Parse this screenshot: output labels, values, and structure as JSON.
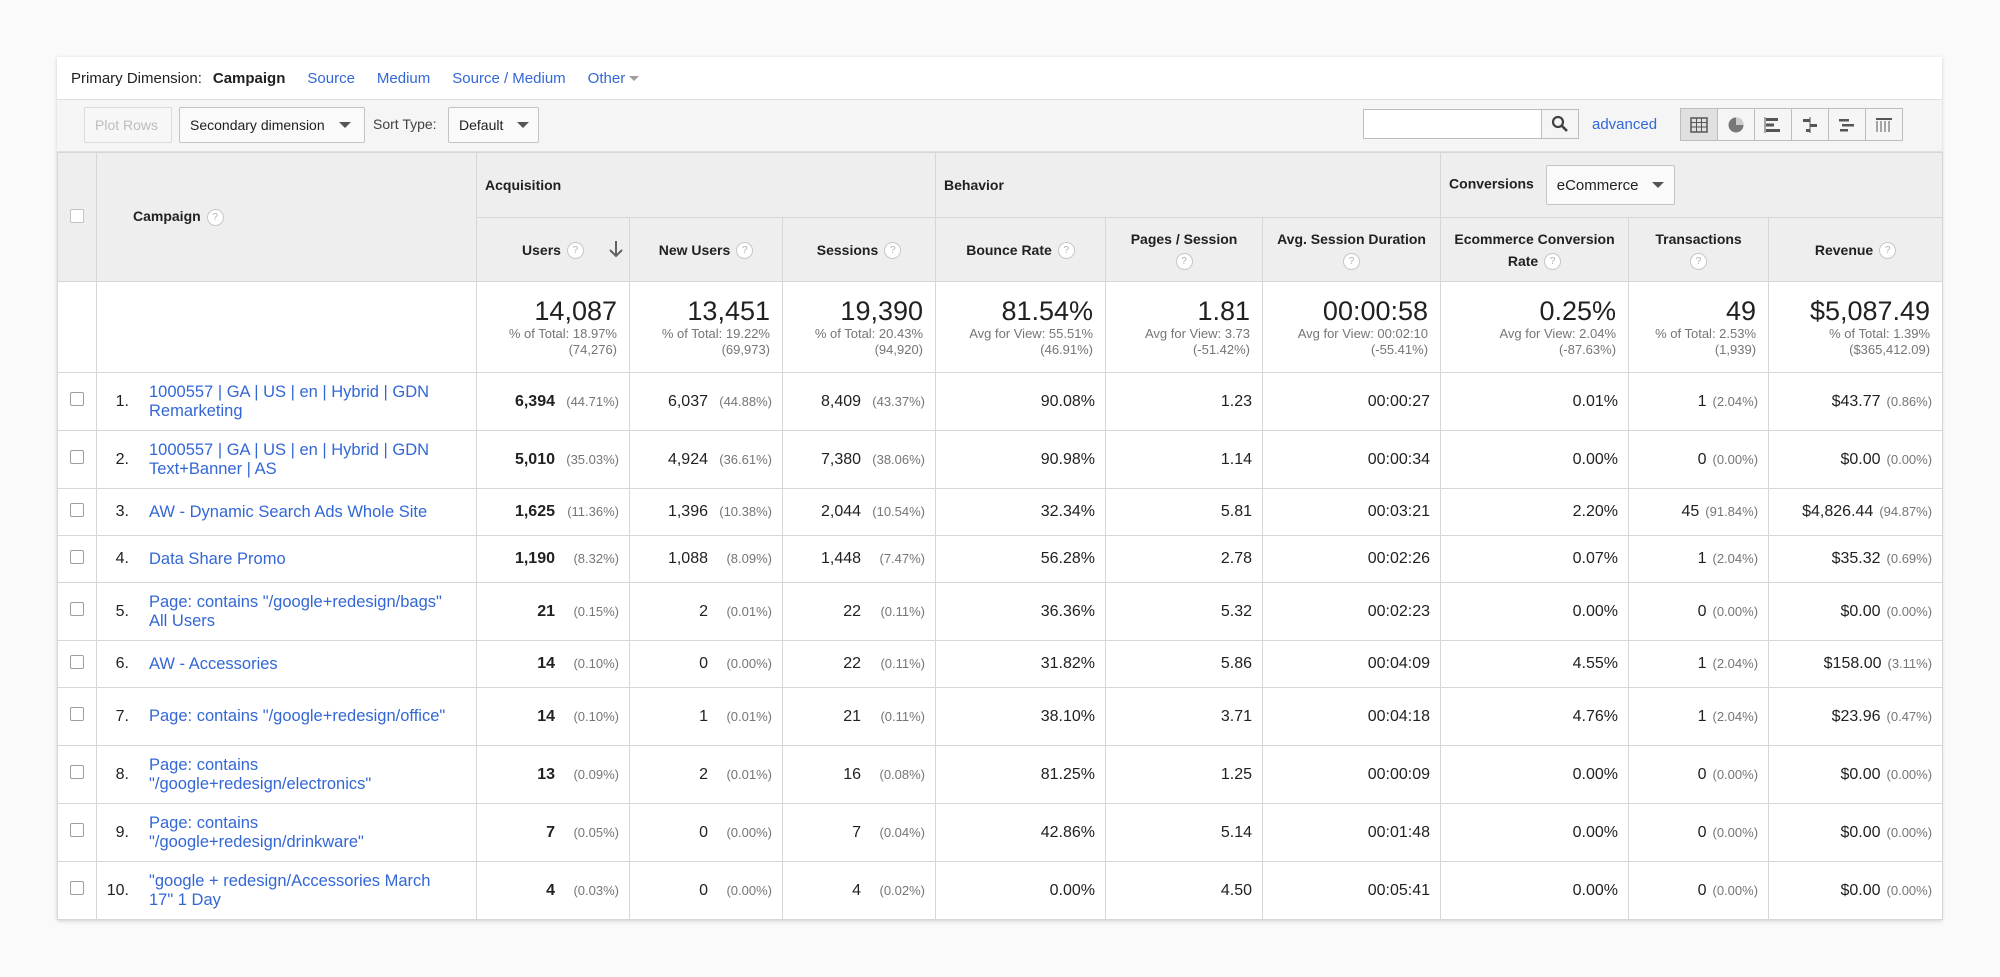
{
  "primary_dimension": {
    "label": "Primary Dimension:",
    "active": "Campaign",
    "links": [
      "Source",
      "Medium",
      "Source / Medium",
      "Other"
    ]
  },
  "toolbar": {
    "plot_rows": "Plot Rows",
    "secondary_dimension": "Secondary dimension",
    "sort_type_label": "Sort Type:",
    "sort_type_value": "Default",
    "search_value": "",
    "advanced": "advanced",
    "view_icons": [
      "table-view-icon",
      "pie-view-icon",
      "bar-view-icon",
      "comparison-view-icon",
      "term-cloud-icon",
      "pivot-view-icon"
    ]
  },
  "table": {
    "campaign_header": "Campaign",
    "groups": {
      "acquisition": "Acquisition",
      "behavior": "Behavior",
      "conversions": "Conversions",
      "conversions_select": "eCommerce"
    },
    "columns": [
      "Users",
      "New Users",
      "Sessions",
      "Bounce Rate",
      "Pages / Session",
      "Avg. Session Duration",
      "Ecommerce Conversion Rate",
      "Transactions",
      "Revenue"
    ],
    "totals": [
      {
        "value": "14,087",
        "sub1": "% of Total: 18.97%",
        "sub2": "(74,276)"
      },
      {
        "value": "13,451",
        "sub1": "% of Total: 19.22%",
        "sub2": "(69,973)"
      },
      {
        "value": "19,390",
        "sub1": "% of Total: 20.43%",
        "sub2": "(94,920)"
      },
      {
        "value": "81.54%",
        "sub1": "Avg for View: 55.51%",
        "sub2": "(46.91%)"
      },
      {
        "value": "1.81",
        "sub1": "Avg for View: 3.73",
        "sub2": "(-51.42%)"
      },
      {
        "value": "00:00:58",
        "sub1": "Avg for View: 00:02:10",
        "sub2": "(-55.41%)"
      },
      {
        "value": "0.25%",
        "sub1": "Avg for View: 2.04%",
        "sub2": "(-87.63%)"
      },
      {
        "value": "49",
        "sub1": "% of Total: 2.53%",
        "sub2": "(1,939)"
      },
      {
        "value": "$5,087.49",
        "sub1": "% of Total: 1.39%",
        "sub2": "($365,412.09)"
      }
    ],
    "rows": [
      {
        "num": "1.",
        "campaign": "1000557 | GA | US | en | Hybrid | GDN Remarketing",
        "users": "6,394",
        "users_pct": "(44.71%)",
        "new_users": "6,037",
        "new_users_pct": "(44.88%)",
        "sessions": "8,409",
        "sessions_pct": "(43.37%)",
        "bounce": "90.08%",
        "pages": "1.23",
        "duration": "00:00:27",
        "conv_rate": "0.01%",
        "transactions": "1",
        "transactions_pct": "(2.04%)",
        "revenue": "$43.77",
        "revenue_pct": "(0.86%)"
      },
      {
        "num": "2.",
        "campaign": "1000557 | GA | US | en | Hybrid | GDN Text+Banner | AS",
        "users": "5,010",
        "users_pct": "(35.03%)",
        "new_users": "4,924",
        "new_users_pct": "(36.61%)",
        "sessions": "7,380",
        "sessions_pct": "(38.06%)",
        "bounce": "90.98%",
        "pages": "1.14",
        "duration": "00:00:34",
        "conv_rate": "0.00%",
        "transactions": "0",
        "transactions_pct": "(0.00%)",
        "revenue": "$0.00",
        "revenue_pct": "(0.00%)"
      },
      {
        "num": "3.",
        "campaign": "AW - Dynamic Search Ads Whole Site",
        "users": "1,625",
        "users_pct": "(11.36%)",
        "new_users": "1,396",
        "new_users_pct": "(10.38%)",
        "sessions": "2,044",
        "sessions_pct": "(10.54%)",
        "bounce": "32.34%",
        "pages": "5.81",
        "duration": "00:03:21",
        "conv_rate": "2.20%",
        "transactions": "45",
        "transactions_pct": "(91.84%)",
        "revenue": "$4,826.44",
        "revenue_pct": "(94.87%)"
      },
      {
        "num": "4.",
        "campaign": "Data Share Promo",
        "users": "1,190",
        "users_pct": "(8.32%)",
        "new_users": "1,088",
        "new_users_pct": "(8.09%)",
        "sessions": "1,448",
        "sessions_pct": "(7.47%)",
        "bounce": "56.28%",
        "pages": "2.78",
        "duration": "00:02:26",
        "conv_rate": "0.07%",
        "transactions": "1",
        "transactions_pct": "(2.04%)",
        "revenue": "$35.32",
        "revenue_pct": "(0.69%)"
      },
      {
        "num": "5.",
        "campaign": "Page: contains \"/google+redesign/bags\" All Users",
        "users": "21",
        "users_pct": "(0.15%)",
        "new_users": "2",
        "new_users_pct": "(0.01%)",
        "sessions": "22",
        "sessions_pct": "(0.11%)",
        "bounce": "36.36%",
        "pages": "5.32",
        "duration": "00:02:23",
        "conv_rate": "0.00%",
        "transactions": "0",
        "transactions_pct": "(0.00%)",
        "revenue": "$0.00",
        "revenue_pct": "(0.00%)"
      },
      {
        "num": "6.",
        "campaign": "AW - Accessories",
        "users": "14",
        "users_pct": "(0.10%)",
        "new_users": "0",
        "new_users_pct": "(0.00%)",
        "sessions": "22",
        "sessions_pct": "(0.11%)",
        "bounce": "31.82%",
        "pages": "5.86",
        "duration": "00:04:09",
        "conv_rate": "4.55%",
        "transactions": "1",
        "transactions_pct": "(2.04%)",
        "revenue": "$158.00",
        "revenue_pct": "(3.11%)"
      },
      {
        "num": "7.",
        "campaign": "Page: contains \"/google+redesign/office\"",
        "users": "14",
        "users_pct": "(0.10%)",
        "new_users": "1",
        "new_users_pct": "(0.01%)",
        "sessions": "21",
        "sessions_pct": "(0.11%)",
        "bounce": "38.10%",
        "pages": "3.71",
        "duration": "00:04:18",
        "conv_rate": "4.76%",
        "transactions": "1",
        "transactions_pct": "(2.04%)",
        "revenue": "$23.96",
        "revenue_pct": "(0.47%)"
      },
      {
        "num": "8.",
        "campaign": "Page: contains \"/google+redesign/electronics\"",
        "users": "13",
        "users_pct": "(0.09%)",
        "new_users": "2",
        "new_users_pct": "(0.01%)",
        "sessions": "16",
        "sessions_pct": "(0.08%)",
        "bounce": "81.25%",
        "pages": "1.25",
        "duration": "00:00:09",
        "conv_rate": "0.00%",
        "transactions": "0",
        "transactions_pct": "(0.00%)",
        "revenue": "$0.00",
        "revenue_pct": "(0.00%)"
      },
      {
        "num": "9.",
        "campaign": "Page: contains \"/google+redesign/drinkware\"",
        "users": "7",
        "users_pct": "(0.05%)",
        "new_users": "0",
        "new_users_pct": "(0.00%)",
        "sessions": "7",
        "sessions_pct": "(0.04%)",
        "bounce": "42.86%",
        "pages": "5.14",
        "duration": "00:01:48",
        "conv_rate": "0.00%",
        "transactions": "0",
        "transactions_pct": "(0.00%)",
        "revenue": "$0.00",
        "revenue_pct": "(0.00%)"
      },
      {
        "num": "10.",
        "campaign": "\"google + redesign/Accessories March 17\" 1 Day",
        "users": "4",
        "users_pct": "(0.03%)",
        "new_users": "0",
        "new_users_pct": "(0.00%)",
        "sessions": "4",
        "sessions_pct": "(0.02%)",
        "bounce": "0.00%",
        "pages": "4.50",
        "duration": "00:05:41",
        "conv_rate": "0.00%",
        "transactions": "0",
        "transactions_pct": "(0.00%)",
        "revenue": "$0.00",
        "revenue_pct": "(0.00%)"
      }
    ]
  },
  "colors": {
    "link": "#3367d6",
    "header_bg": "#eeeeee",
    "border": "#d6d6d6"
  }
}
